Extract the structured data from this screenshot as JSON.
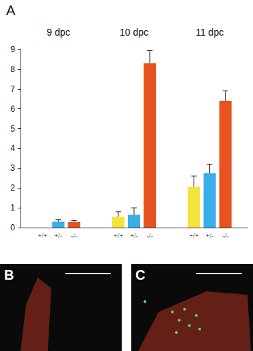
{
  "chart_data": {
    "type": "bar",
    "title": "A",
    "categories": [
      "9 dpc",
      "10 dpc",
      "11 dpc"
    ],
    "series": [
      {
        "name": "+/+",
        "color": "#f2e43c",
        "values": [
          0,
          0.55,
          2.05
        ],
        "errors": [
          null,
          0.25,
          0.55
        ]
      },
      {
        "name": "+/-",
        "color": "#3aaee6",
        "values": [
          0.3,
          0.65,
          2.75
        ],
        "errors": [
          0.1,
          0.35,
          0.45
        ]
      },
      {
        "name": "-/-",
        "color": "#e8521f",
        "values": [
          0.28,
          8.3,
          6.4
        ],
        "errors": [
          0.08,
          0.65,
          0.5
        ]
      }
    ],
    "ylim": [
      0,
      9
    ],
    "yticks": [
      0,
      1,
      2,
      3,
      4,
      5,
      6,
      7,
      8,
      9
    ],
    "grid": false
  },
  "panels": [
    {
      "label": "B"
    },
    {
      "label": "C"
    }
  ]
}
